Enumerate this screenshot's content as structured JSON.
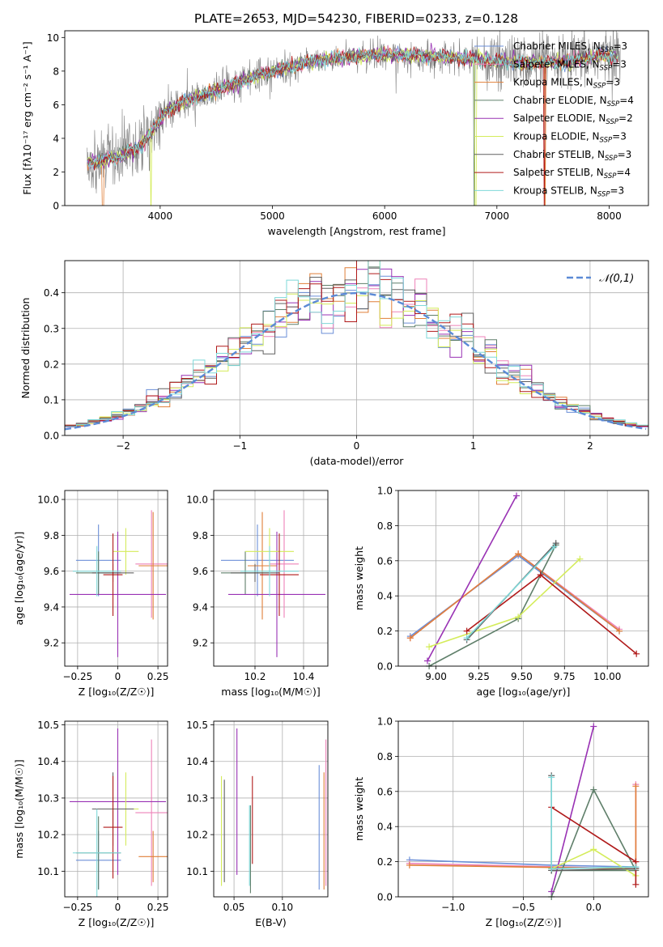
{
  "figure": {
    "title": "PLATE=2653, MJD=54230, FIBERID=0233, z=0.128"
  },
  "colors": {
    "chabrier_miles": "#6b8fd8",
    "salpeter_miles": "#ee82b8",
    "kroupa_miles": "#e07f38",
    "chabrier_elodie": "#5f7f6a",
    "salpeter_elodie": "#9932b4",
    "kroupa_elodie": "#d4ec5a",
    "chabrier_stelib": "#606060",
    "salpeter_stelib": "#b01a1a",
    "kroupa_stelib": "#7ed8d8",
    "data": "#808080",
    "normal": "#5b8ad6"
  },
  "chart_data": [
    {
      "id": "spectrum",
      "type": "line",
      "title": "PLATE=2653, MJD=54230, FIBERID=0233, z=0.128",
      "xlabel": "wavelength [Angstrom, rest frame]",
      "ylabel": "Flux [fλ10⁻¹⁷ erg cm⁻² s⁻¹ A⁻¹]",
      "xlim": [
        3150,
        8350
      ],
      "ylim": [
        0,
        10.4
      ],
      "xticks": [
        4000,
        5000,
        6000,
        7000,
        8000
      ],
      "yticks": [
        0,
        2,
        4,
        6,
        8,
        10
      ],
      "legend_position": "right",
      "legend": [
        {
          "label": "Chabrier MILES, N",
          "sub": "SSP",
          "suffix": "=3",
          "color_key": "chabrier_miles"
        },
        {
          "label": "Salpeter MILES, N",
          "sub": "SSP",
          "suffix": "=3",
          "color_key": "salpeter_miles"
        },
        {
          "label": "Kroupa MILES, N",
          "sub": "SSP",
          "suffix": "=3",
          "color_key": "kroupa_miles"
        },
        {
          "label": "Chabrier ELODIE, N",
          "sub": "SSP",
          "suffix": "=4",
          "color_key": "chabrier_elodie"
        },
        {
          "label": "Salpeter ELODIE, N",
          "sub": "SSP",
          "suffix": "=2",
          "color_key": "salpeter_elodie"
        },
        {
          "label": "Kroupa ELODIE, N",
          "sub": "SSP",
          "suffix": "=3",
          "color_key": "kroupa_elodie"
        },
        {
          "label": "Chabrier STELIB, N",
          "sub": "SSP",
          "suffix": "=3",
          "color_key": "chabrier_stelib"
        },
        {
          "label": "Salpeter STELIB, N",
          "sub": "SSP",
          "suffix": "=4",
          "color_key": "salpeter_stelib"
        },
        {
          "label": "Kroupa STELIB, N",
          "sub": "SSP",
          "suffix": "=3",
          "color_key": "kroupa_stelib"
        }
      ],
      "continuum_knots": {
        "x": [
          3400,
          3600,
          3800,
          3950,
          4050,
          4300,
          4600,
          5000,
          5300,
          5600,
          6000,
          6300,
          6600,
          7000,
          7300,
          7600,
          7900,
          8100
        ],
        "y": [
          2.6,
          2.8,
          3.4,
          4.6,
          5.6,
          6.4,
          7.1,
          8.0,
          8.5,
          8.8,
          9.0,
          8.9,
          8.8,
          8.6,
          8.5,
          8.5,
          8.9,
          8.9
        ]
      },
      "data_range": [
        3350,
        8100
      ],
      "model_range": [
        3350,
        8080
      ],
      "model_gaps": [
        {
          "model": "kroupa_miles",
          "x": 3490
        },
        {
          "model": "kroupa_elodie",
          "x": 3920
        },
        {
          "model": "kroupa_elodie",
          "x": 6810
        },
        {
          "model": "chabrier_elodie",
          "x": 6800
        },
        {
          "model": "kroupa_miles",
          "x": 7430
        },
        {
          "model": "salpeter_stelib",
          "x": 7420
        }
      ]
    },
    {
      "id": "residuals",
      "type": "histogram",
      "xlabel": "(data-model)/error",
      "ylabel": "Normed distribution",
      "xlim": [
        -2.5,
        2.5
      ],
      "ylim": [
        0,
        0.49
      ],
      "xticks": [
        -2,
        -1,
        0,
        1,
        2
      ],
      "yticks": [
        0.0,
        0.1,
        0.2,
        0.3,
        0.4
      ],
      "legend": "𝒩(0,1)",
      "legend_position": "top-right",
      "bin_width": 0.1,
      "grid": true
    },
    {
      "id": "age_vs_Z",
      "type": "scatter",
      "xlabel": "Z [log₁₀(Z/Z☉)]",
      "ylabel": "age  [log₁₀(age/yr)]",
      "xlim": [
        -0.33,
        0.31
      ],
      "ylim": [
        9.07,
        10.05
      ],
      "xticks": [
        -0.25,
        0.0,
        0.25
      ],
      "yticks": [
        9.2,
        9.4,
        9.6,
        9.8,
        10.0
      ],
      "grid": true,
      "points": [
        {
          "c": "chabrier_miles",
          "x": -0.12,
          "xerr": 0.14,
          "y": 9.66,
          "yerr": 0.2
        },
        {
          "c": "salpeter_miles",
          "x": 0.21,
          "xerr": 0.1,
          "y": 9.64,
          "yerr": 0.3
        },
        {
          "c": "kroupa_miles",
          "x": 0.22,
          "xerr": 0.09,
          "y": 9.63,
          "yerr": 0.3
        },
        {
          "c": "chabrier_elodie",
          "x": -0.12,
          "xerr": 0.14,
          "y": 9.59,
          "yerr": 0.12
        },
        {
          "c": "salpeter_elodie",
          "x": 0.0,
          "xerr": 0.3,
          "y": 9.47,
          "yerr": 0.35
        },
        {
          "c": "kroupa_elodie",
          "x": 0.05,
          "xerr": 0.08,
          "y": 9.71,
          "yerr": 0.13
        },
        {
          "c": "chabrier_stelib",
          "x": -0.03,
          "xerr": 0.13,
          "y": 9.59,
          "yerr": 0.05
        },
        {
          "c": "salpeter_stelib",
          "x": -0.03,
          "xerr": 0.06,
          "y": 9.58,
          "yerr": 0.23
        },
        {
          "c": "kroupa_stelib",
          "x": -0.13,
          "xerr": 0.15,
          "y": 9.6,
          "yerr": 0.14
        }
      ]
    },
    {
      "id": "age_vs_mass",
      "type": "scatter",
      "xlabel": "mass [log₁₀(M/M☉)]",
      "ylabel": "",
      "xlim": [
        10.03,
        10.5
      ],
      "ylim": [
        9.07,
        10.05
      ],
      "xticks": [
        10.2,
        10.4
      ],
      "yticks": [
        9.2,
        9.4,
        9.6,
        9.8,
        10.0
      ],
      "grid": true,
      "points": [
        {
          "c": "chabrier_miles",
          "x": 10.21,
          "xerr": 0.15,
          "y": 9.66,
          "yerr": 0.2
        },
        {
          "c": "salpeter_miles",
          "x": 10.32,
          "xerr": 0.06,
          "y": 9.64,
          "yerr": 0.3
        },
        {
          "c": "kroupa_miles",
          "x": 10.23,
          "xerr": 0.06,
          "y": 9.63,
          "yerr": 0.3
        },
        {
          "c": "chabrier_elodie",
          "x": 10.16,
          "xerr": 0.1,
          "y": 9.59,
          "yerr": 0.12
        },
        {
          "c": "salpeter_elodie",
          "x": 10.29,
          "xerr": 0.2,
          "y": 9.47,
          "yerr": 0.35
        },
        {
          "c": "kroupa_elodie",
          "x": 10.26,
          "xerr": 0.1,
          "y": 9.71,
          "yerr": 0.13
        },
        {
          "c": "chabrier_stelib",
          "x": 10.2,
          "xerr": 0.1,
          "y": 9.59,
          "yerr": 0.05
        },
        {
          "c": "salpeter_stelib",
          "x": 10.3,
          "xerr": 0.08,
          "y": 9.58,
          "yerr": 0.23
        },
        {
          "c": "kroupa_stelib",
          "x": 10.26,
          "xerr": 0.12,
          "y": 9.6,
          "yerr": 0.14
        }
      ]
    },
    {
      "id": "weight_vs_age",
      "type": "line",
      "xlabel": "age  [log₁₀(age/yr)]",
      "ylabel": "mass weight",
      "xlim": [
        8.78,
        10.24
      ],
      "ylim": [
        0,
        1.0
      ],
      "xticks": [
        9.0,
        9.25,
        9.5,
        9.75,
        10.0
      ],
      "xticklabels": [
        "9.00",
        "9.25",
        "9.50",
        "9.75",
        "10.00"
      ],
      "yticks": [
        0.0,
        0.2,
        0.4,
        0.6,
        0.8,
        1.0
      ],
      "grid": true,
      "series": [
        {
          "c": "chabrier_miles",
          "x": [
            8.85,
            9.48,
            10.07
          ],
          "y": [
            0.17,
            0.63,
            0.2
          ]
        },
        {
          "c": "salpeter_miles",
          "x": [
            8.85,
            9.48,
            10.07
          ],
          "y": [
            0.16,
            0.64,
            0.21
          ]
        },
        {
          "c": "kroupa_miles",
          "x": [
            8.85,
            9.48,
            10.07
          ],
          "y": [
            0.16,
            0.64,
            0.2
          ]
        },
        {
          "c": "chabrier_elodie",
          "x": [
            8.96,
            9.48,
            9.7
          ],
          "y": [
            0.0,
            0.27,
            0.69
          ]
        },
        {
          "c": "salpeter_elodie",
          "x": [
            8.95,
            9.47
          ],
          "y": [
            0.03,
            0.97
          ]
        },
        {
          "c": "kroupa_elodie",
          "x": [
            8.96,
            9.48,
            9.84
          ],
          "y": [
            0.11,
            0.28,
            0.61
          ]
        },
        {
          "c": "chabrier_stelib",
          "x": [
            9.18,
            9.7
          ],
          "y": [
            0.15,
            0.7
          ]
        },
        {
          "c": "salpeter_stelib",
          "x": [
            9.18,
            9.61,
            10.17
          ],
          "y": [
            0.2,
            0.52,
            0.07
          ]
        },
        {
          "c": "kroupa_stelib",
          "x": [
            9.18,
            9.69
          ],
          "y": [
            0.16,
            0.68
          ]
        }
      ]
    },
    {
      "id": "mass_vs_Z",
      "type": "scatter",
      "xlabel": "Z [log₁₀(Z/Z☉)]",
      "ylabel": "mass [log₁₀(M/M☉)]",
      "xlim": [
        -0.33,
        0.31
      ],
      "ylim": [
        10.03,
        10.51
      ],
      "xticks": [
        -0.25,
        0.0,
        0.25
      ],
      "yticks": [
        10.1,
        10.2,
        10.3,
        10.4,
        10.5
      ],
      "grid": true,
      "points": [
        {
          "c": "chabrier_miles",
          "x": -0.12,
          "xerr": 0.14,
          "y": 10.13,
          "yerr": 0.08
        },
        {
          "c": "salpeter_miles",
          "x": 0.21,
          "xerr": 0.1,
          "y": 10.26,
          "yerr": 0.2
        },
        {
          "c": "kroupa_miles",
          "x": 0.22,
          "xerr": 0.09,
          "y": 10.14,
          "yerr": 0.07
        },
        {
          "c": "chabrier_elodie",
          "x": -0.12,
          "xerr": 0.14,
          "y": 10.15,
          "yerr": 0.1
        },
        {
          "c": "salpeter_elodie",
          "x": 0.0,
          "xerr": 0.3,
          "y": 10.29,
          "yerr": 0.2
        },
        {
          "c": "kroupa_elodie",
          "x": 0.05,
          "xerr": 0.08,
          "y": 10.27,
          "yerr": 0.1
        },
        {
          "c": "chabrier_stelib",
          "x": -0.03,
          "xerr": 0.13,
          "y": 10.27,
          "yerr": 0.1
        },
        {
          "c": "salpeter_stelib",
          "x": -0.03,
          "xerr": 0.06,
          "y": 10.22,
          "yerr": 0.14
        },
        {
          "c": "kroupa_stelib",
          "x": -0.13,
          "xerr": 0.15,
          "y": 10.15,
          "yerr": 0.12
        }
      ]
    },
    {
      "id": "mass_vs_EBV",
      "type": "scatter",
      "xlabel": "E(B-V)",
      "ylabel": "",
      "xlim": [
        0.029,
        0.147
      ],
      "ylim": [
        10.03,
        10.51
      ],
      "xticks": [
        0.05,
        0.1
      ],
      "xticklabels": [
        "0.05",
        "0.10"
      ],
      "yticks": [
        10.1,
        10.2,
        10.3,
        10.4,
        10.5
      ],
      "grid": true,
      "points": [
        {
          "c": "chabrier_miles",
          "x": 0.138,
          "y": 10.22,
          "yerr": 0.17
        },
        {
          "c": "salpeter_miles",
          "x": 0.145,
          "y": 10.26,
          "yerr": 0.2
        },
        {
          "c": "kroupa_miles",
          "x": 0.143,
          "y": 10.21,
          "yerr": 0.16
        },
        {
          "c": "chabrier_elodie",
          "x": 0.067,
          "y": 10.16,
          "yerr": 0.12
        },
        {
          "c": "salpeter_elodie",
          "x": 0.053,
          "y": 10.29,
          "yerr": 0.2
        },
        {
          "c": "kroupa_elodie",
          "x": 0.037,
          "y": 10.21,
          "yerr": 0.15
        },
        {
          "c": "chabrier_stelib",
          "x": 0.04,
          "y": 10.21,
          "yerr": 0.14
        },
        {
          "c": "salpeter_stelib",
          "x": 0.069,
          "y": 10.24,
          "yerr": 0.12
        },
        {
          "c": "kroupa_stelib",
          "x": 0.066,
          "y": 10.17,
          "yerr": 0.11
        }
      ]
    },
    {
      "id": "weight_vs_Z",
      "type": "line",
      "xlabel": "Z [log₁₀(Z/Z☉)]",
      "ylabel": "mass weight",
      "xlim": [
        -1.39,
        0.39
      ],
      "ylim": [
        0,
        1.0
      ],
      "xticks": [
        -1.0,
        -0.5,
        0.0
      ],
      "xticklabels": [
        "−1.0",
        "−0.5",
        "0.0"
      ],
      "yticks": [
        0.0,
        0.2,
        0.4,
        0.6,
        0.8,
        1.0
      ],
      "grid": true,
      "series": [
        {
          "c": "chabrier_miles",
          "x": [
            -1.31,
            -0.3,
            0.3
          ],
          "y": [
            0.21,
            0.18,
            0.17
          ]
        },
        {
          "c": "salpeter_miles",
          "x": [
            -1.31,
            0.3,
            0.3
          ],
          "y": [
            0.19,
            0.16,
            0.64
          ]
        },
        {
          "c": "kroupa_miles",
          "x": [
            -1.31,
            0.3,
            0.3
          ],
          "y": [
            0.18,
            0.16,
            0.63
          ]
        },
        {
          "c": "chabrier_elodie",
          "x": [
            -0.3,
            0.0,
            0.3,
            -0.3
          ],
          "y": [
            0.0,
            0.61,
            0.15,
            0.15
          ]
        },
        {
          "c": "salpeter_elodie",
          "x": [
            -0.3,
            0.0
          ],
          "y": [
            0.03,
            0.97
          ]
        },
        {
          "c": "kroupa_elodie",
          "x": [
            -0.3,
            0.0,
            0.3
          ],
          "y": [
            0.16,
            0.27,
            0.12
          ]
        },
        {
          "c": "chabrier_stelib",
          "x": [
            -0.3,
            -0.3,
            0.3
          ],
          "y": [
            0.69,
            0.15,
            0.16
          ]
        },
        {
          "c": "salpeter_stelib",
          "x": [
            -0.3,
            0.3,
            0.3
          ],
          "y": [
            0.51,
            0.2,
            0.07
          ]
        },
        {
          "c": "kroupa_stelib",
          "x": [
            -0.3,
            -0.3,
            0.3
          ],
          "y": [
            0.68,
            0.16,
            0.17
          ]
        }
      ]
    }
  ]
}
